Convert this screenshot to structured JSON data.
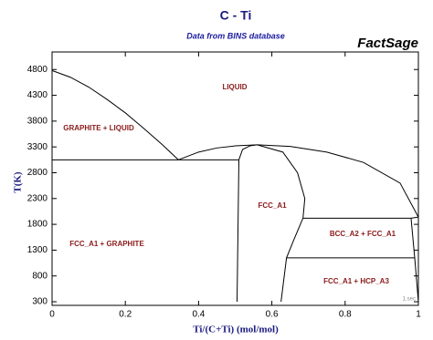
{
  "chart_data": {
    "type": "line",
    "title": "C - Ti",
    "subtitle": "Data from BINS database",
    "brand": "FactSage",
    "footnote": "1.sec",
    "x_label": "Ti/(C+Ti)   (mol/mol)",
    "y_label": "T(K)",
    "xlim": [
      0,
      1
    ],
    "ylim": [
      230,
      5140
    ],
    "xticks": [
      0,
      0.2,
      0.4,
      0.6,
      0.8,
      1
    ],
    "yticks": [
      300,
      800,
      1300,
      1800,
      2300,
      2800,
      3300,
      3800,
      4300,
      4800
    ],
    "color": "#000000",
    "annotations": [
      "LIQUID",
      "GRAPHITE + LIQUID",
      "FCC_A1",
      "BCC_A2 + FCC_A1",
      "FCC_A1 + GRAPHITE",
      "FCC_A1 + HCP_A3"
    ],
    "series": [
      {
        "x": [
          0,
          0.05,
          0.1,
          0.15,
          0.2,
          0.25,
          0.3,
          0.345
        ],
        "values": [
          4780,
          4650,
          4460,
          4220,
          3960,
          3660,
          3350,
          3050
        ]
      },
      {
        "x": [
          0,
          0.51
        ],
        "values": [
          3050,
          3050
        ]
      },
      {
        "x": [
          0.345,
          0.4,
          0.45,
          0.5,
          0.56,
          0.65,
          0.75,
          0.85,
          0.95,
          1
        ],
        "values": [
          3050,
          3200,
          3280,
          3320,
          3340,
          3310,
          3200,
          3000,
          2600,
          1941
        ]
      },
      {
        "x": [
          0.505,
          0.51,
          0.52,
          0.54,
          0.56
        ],
        "values": [
          300,
          3050,
          3250,
          3320,
          3340
        ]
      },
      {
        "x": [
          0.56,
          0.63,
          0.67,
          0.69,
          0.685,
          0.66,
          0.64,
          0.625
        ],
        "values": [
          3340,
          3200,
          2800,
          2300,
          1920,
          1500,
          1150,
          300
        ]
      },
      {
        "x": [
          0.685,
          0.98,
          1
        ],
        "values": [
          1920,
          1920,
          1941
        ]
      },
      {
        "x": [
          0.64,
          0.99
        ],
        "values": [
          1150,
          1150
        ]
      },
      {
        "x": [
          0.98,
          0.99,
          1
        ],
        "values": [
          1920,
          1150,
          300
        ]
      }
    ]
  }
}
